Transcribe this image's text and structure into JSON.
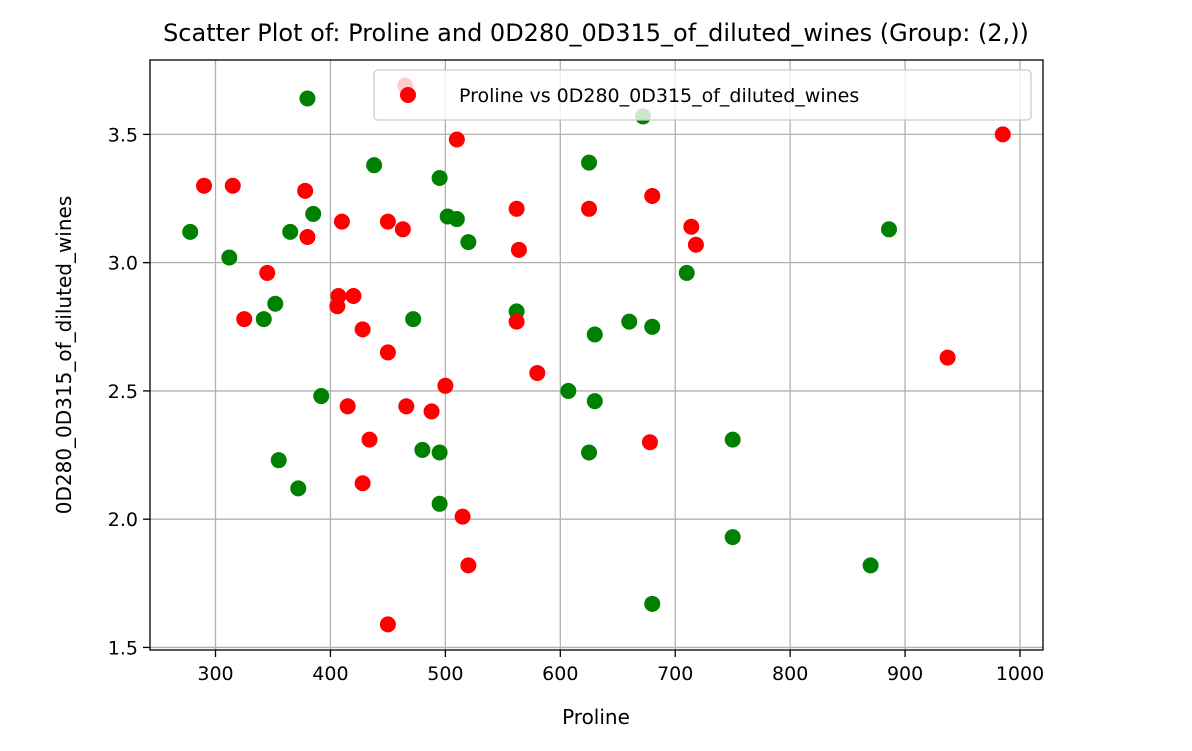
{
  "chart_data": {
    "type": "scatter",
    "title": "Scatter Plot of: Proline and 0D280_0D315_of_diluted_wines (Group: (2,))",
    "xlabel": "Proline",
    "ylabel": "0D280_0D315_of_diluted_wines",
    "xlim": [
      243,
      1020
    ],
    "ylim": [
      1.49,
      3.79
    ],
    "xticks": [
      300,
      400,
      500,
      600,
      700,
      800,
      900,
      1000
    ],
    "yticks": [
      1.5,
      2.0,
      2.5,
      3.0,
      3.5
    ],
    "grid": true,
    "legend": {
      "position": "top-right",
      "label": "Proline vs 0D280_0D315_of_diluted_wines",
      "color": "#ff0000"
    },
    "series": [
      {
        "color": "#008000",
        "points": [
          [
            278,
            3.12
          ],
          [
            312,
            3.02
          ],
          [
            342,
            2.78
          ],
          [
            352,
            2.84
          ],
          [
            355,
            2.23
          ],
          [
            365,
            3.12
          ],
          [
            372,
            2.12
          ],
          [
            380,
            3.64
          ],
          [
            385,
            3.19
          ],
          [
            392,
            2.48
          ],
          [
            438,
            3.38
          ],
          [
            472,
            2.78
          ],
          [
            480,
            2.27
          ],
          [
            495,
            3.33
          ],
          [
            495,
            2.26
          ],
          [
            495,
            2.06
          ],
          [
            502,
            3.18
          ],
          [
            510,
            3.17
          ],
          [
            520,
            3.08
          ],
          [
            562,
            2.81
          ],
          [
            607,
            2.5
          ],
          [
            625,
            3.39
          ],
          [
            625,
            2.26
          ],
          [
            630,
            2.72
          ],
          [
            630,
            2.46
          ],
          [
            660,
            2.77
          ],
          [
            672,
            3.57
          ],
          [
            680,
            2.75
          ],
          [
            680,
            1.67
          ],
          [
            710,
            2.96
          ],
          [
            750,
            2.31
          ],
          [
            750,
            1.93
          ],
          [
            870,
            1.82
          ],
          [
            886,
            3.13
          ]
        ]
      },
      {
        "color": "#ff0000",
        "points": [
          [
            290,
            3.3
          ],
          [
            315,
            3.3
          ],
          [
            325,
            2.78
          ],
          [
            345,
            2.96
          ],
          [
            378,
            3.28
          ],
          [
            380,
            3.1
          ],
          [
            406,
            2.83
          ],
          [
            407,
            2.87
          ],
          [
            410,
            3.16
          ],
          [
            415,
            2.44
          ],
          [
            420,
            2.87
          ],
          [
            428,
            2.74
          ],
          [
            428,
            2.14
          ],
          [
            434,
            2.31
          ],
          [
            450,
            3.16
          ],
          [
            450,
            2.65
          ],
          [
            450,
            1.59
          ],
          [
            463,
            3.13
          ],
          [
            465,
            3.69
          ],
          [
            466,
            2.44
          ],
          [
            488,
            2.42
          ],
          [
            500,
            2.52
          ],
          [
            510,
            3.48
          ],
          [
            515,
            2.01
          ],
          [
            520,
            1.82
          ],
          [
            562,
            3.21
          ],
          [
            562,
            2.77
          ],
          [
            564,
            3.05
          ],
          [
            580,
            2.57
          ],
          [
            625,
            3.21
          ],
          [
            678,
            2.3
          ],
          [
            680,
            3.26
          ],
          [
            714,
            3.14
          ],
          [
            718,
            3.07
          ],
          [
            937,
            2.63
          ],
          [
            985,
            3.5
          ]
        ]
      }
    ]
  }
}
